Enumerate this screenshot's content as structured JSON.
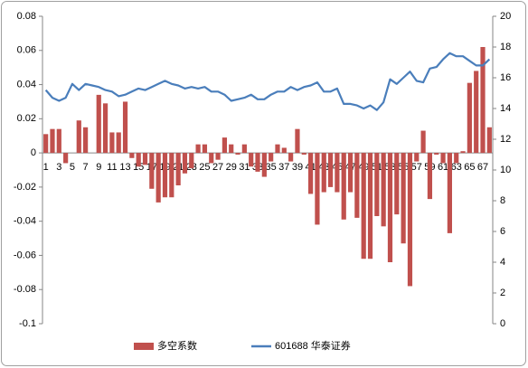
{
  "chart_data": {
    "type": "bar-line",
    "categories": [
      "1",
      null,
      "3",
      null,
      "5",
      null,
      "7",
      null,
      "9",
      null,
      "11",
      null,
      "13",
      null,
      "15",
      null,
      "17",
      null,
      "19",
      null,
      "21",
      null,
      "23",
      null,
      "25",
      null,
      "27",
      null,
      "29",
      null,
      "31",
      null,
      "33",
      null,
      "35",
      null,
      "37",
      null,
      "39",
      null,
      "41",
      null,
      "43",
      null,
      "45",
      null,
      "47",
      null,
      "49",
      null,
      "51",
      null,
      "53",
      null,
      "55",
      null,
      "57",
      null,
      "59",
      null,
      "61",
      null,
      "63",
      null,
      "65",
      null,
      "67",
      null
    ],
    "series": [
      {
        "name": "多空系数",
        "type": "bar",
        "color": "#c0504d",
        "values": [
          0.011,
          0.014,
          0.014,
          -0.006,
          0,
          0.019,
          0.015,
          0,
          0.034,
          0.029,
          0.012,
          0.012,
          0.03,
          -0.003,
          -0.008,
          -0.007,
          -0.021,
          -0.029,
          -0.026,
          -0.026,
          -0.019,
          -0.012,
          -0.009,
          0.005,
          0.005,
          -0.006,
          -0.004,
          0.009,
          0.005,
          -0.001,
          0.005,
          -0.008,
          -0.011,
          -0.014,
          -0.005,
          0.005,
          0.003,
          -0.005,
          0.014,
          -0.001,
          -0.024,
          -0.042,
          -0.023,
          -0.02,
          -0.023,
          -0.039,
          -0.023,
          -0.038,
          -0.062,
          -0.062,
          -0.037,
          -0.043,
          -0.064,
          -0.036,
          -0.053,
          -0.078,
          -0.005,
          0.013,
          -0.027,
          -0.001,
          -0.006,
          -0.047,
          -0.006,
          0.001,
          0.041,
          0.048,
          0.062,
          0.015
        ]
      },
      {
        "name": "601688 华泰证券",
        "type": "line",
        "axis": "y2",
        "color": "#4a7ebb",
        "values": [
          15.2,
          14.7,
          14.5,
          14.7,
          15.6,
          15.2,
          15.6,
          15.5,
          15.4,
          15.2,
          15.1,
          14.8,
          14.9,
          15.1,
          15.3,
          15.2,
          15.4,
          15.6,
          15.8,
          15.6,
          15.5,
          15.3,
          15.4,
          15.3,
          15.4,
          15.1,
          15.1,
          14.9,
          14.5,
          14.6,
          14.7,
          14.9,
          14.6,
          14.6,
          14.9,
          15.1,
          15.1,
          15.4,
          15.2,
          15.4,
          15.5,
          15.7,
          15.1,
          15.1,
          15.3,
          14.3,
          14.3,
          14.2,
          14.0,
          14.2,
          13.9,
          14.4,
          15.9,
          15.6,
          16.0,
          16.4,
          15.8,
          15.7,
          16.6,
          16.7,
          17.2,
          17.6,
          17.4,
          17.4,
          17.1,
          16.8,
          16.8,
          17.2
        ]
      }
    ],
    "ylim": [
      -0.1,
      0.08
    ],
    "yticks": [
      0.08,
      0.06,
      0.04,
      0.02,
      0,
      -0.02,
      -0.04,
      -0.06,
      -0.08,
      -0.1
    ],
    "y2lim": [
      0,
      20
    ],
    "y2ticks": [
      20,
      18,
      16,
      14,
      12,
      10,
      8,
      6,
      4,
      2,
      0
    ],
    "grid": false,
    "legend": "bottom"
  }
}
